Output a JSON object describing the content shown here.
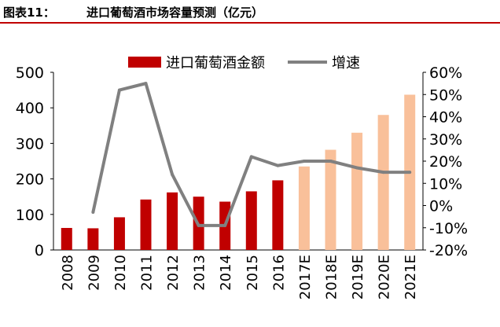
{
  "figure": {
    "label": "图表11：",
    "title": "进口葡萄酒市场容量预测（亿元）"
  },
  "colors": {
    "bar_actual": "#c00000",
    "bar_forecast": "#f9c09a",
    "line": "#808080",
    "title_rule": "#c00000"
  },
  "chart_data": {
    "type": "bar",
    "categories": [
      "2008",
      "2009",
      "2010",
      "2011",
      "2012",
      "2013",
      "2014",
      "2015",
      "2016",
      "2017E",
      "2018E",
      "2019E",
      "2020E",
      "2021E"
    ],
    "series": [
      {
        "name": "进口葡萄酒金额",
        "type": "bar",
        "axis": "left",
        "values": [
          62,
          61,
          92,
          142,
          162,
          150,
          136,
          165,
          196,
          235,
          282,
          330,
          380,
          437
        ],
        "forecast_from_index": 9
      },
      {
        "name": "增速",
        "type": "line",
        "axis": "right",
        "values": [
          null,
          -3,
          52,
          55,
          14,
          -9,
          -9,
          22,
          18,
          20,
          20,
          17,
          15,
          15
        ]
      }
    ],
    "y_left": {
      "ylim": [
        0,
        500
      ],
      "ticks": [
        "0",
        "100",
        "200",
        "300",
        "400",
        "500"
      ]
    },
    "y_right": {
      "ylim": [
        -20,
        60
      ],
      "ticks": [
        "-20%",
        "-10%",
        "0%",
        "10%",
        "20%",
        "30%",
        "40%",
        "50%",
        "60%"
      ]
    },
    "legend": "top"
  }
}
